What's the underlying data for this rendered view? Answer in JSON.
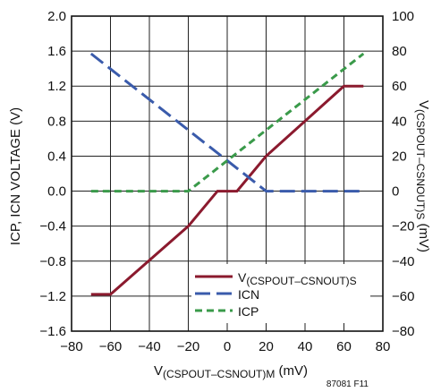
{
  "chart_data": {
    "type": "line",
    "xlabel": {
      "main": "V",
      "sub": "(CSPOUT–CSNOUT)M",
      "unit": " (mV)"
    },
    "ylabel_left": "ICP, ICN VOLTAGE (V)",
    "ylabel_right": {
      "main": "V",
      "sub": "(CSPOUT–CSNOUT)S",
      "unit": " (mV)"
    },
    "xlim": [
      -80,
      80
    ],
    "ylim_left": [
      -1.6,
      2.0
    ],
    "ylim_right": [
      -80,
      100
    ],
    "x_ticks": [
      "−80",
      "−60",
      "−40",
      "−20",
      "0",
      "20",
      "40",
      "60",
      "80"
    ],
    "y_ticks_left": [
      "2.0",
      "1.6",
      "1.2",
      "0.8",
      "0.4",
      "0.0",
      "−0.4",
      "−0.8",
      "−1.2",
      "−1.6"
    ],
    "y_ticks_right": [
      "100",
      "80",
      "60",
      "40",
      "20",
      "0",
      "−20",
      "−40",
      "−60",
      "−80"
    ],
    "grid": true,
    "legend_position": "bottom-right",
    "figure_id": "87081 F11",
    "series": [
      {
        "name": "V(CSPOUT–CSNOUT)S",
        "legend_main": "V",
        "legend_sub": "(CSPOUT–CSNOUT)S",
        "axis": "right",
        "color": "#8b1a2e",
        "style": "solid",
        "x": [
          -70,
          -60,
          -20,
          -5,
          5,
          20,
          60,
          70
        ],
        "y": [
          -59,
          -59,
          -20,
          0,
          0,
          20,
          60,
          60
        ]
      },
      {
        "name": "ICN",
        "axis": "left",
        "color": "#3a5bab",
        "style": "long-dash",
        "x": [
          -70,
          20,
          70
        ],
        "y": [
          1.57,
          0.0,
          0.0
        ]
      },
      {
        "name": "ICP",
        "axis": "left",
        "color": "#3a9a4a",
        "style": "short-dash",
        "x": [
          -70,
          -20,
          70
        ],
        "y": [
          0.0,
          0.0,
          1.57
        ]
      }
    ]
  }
}
